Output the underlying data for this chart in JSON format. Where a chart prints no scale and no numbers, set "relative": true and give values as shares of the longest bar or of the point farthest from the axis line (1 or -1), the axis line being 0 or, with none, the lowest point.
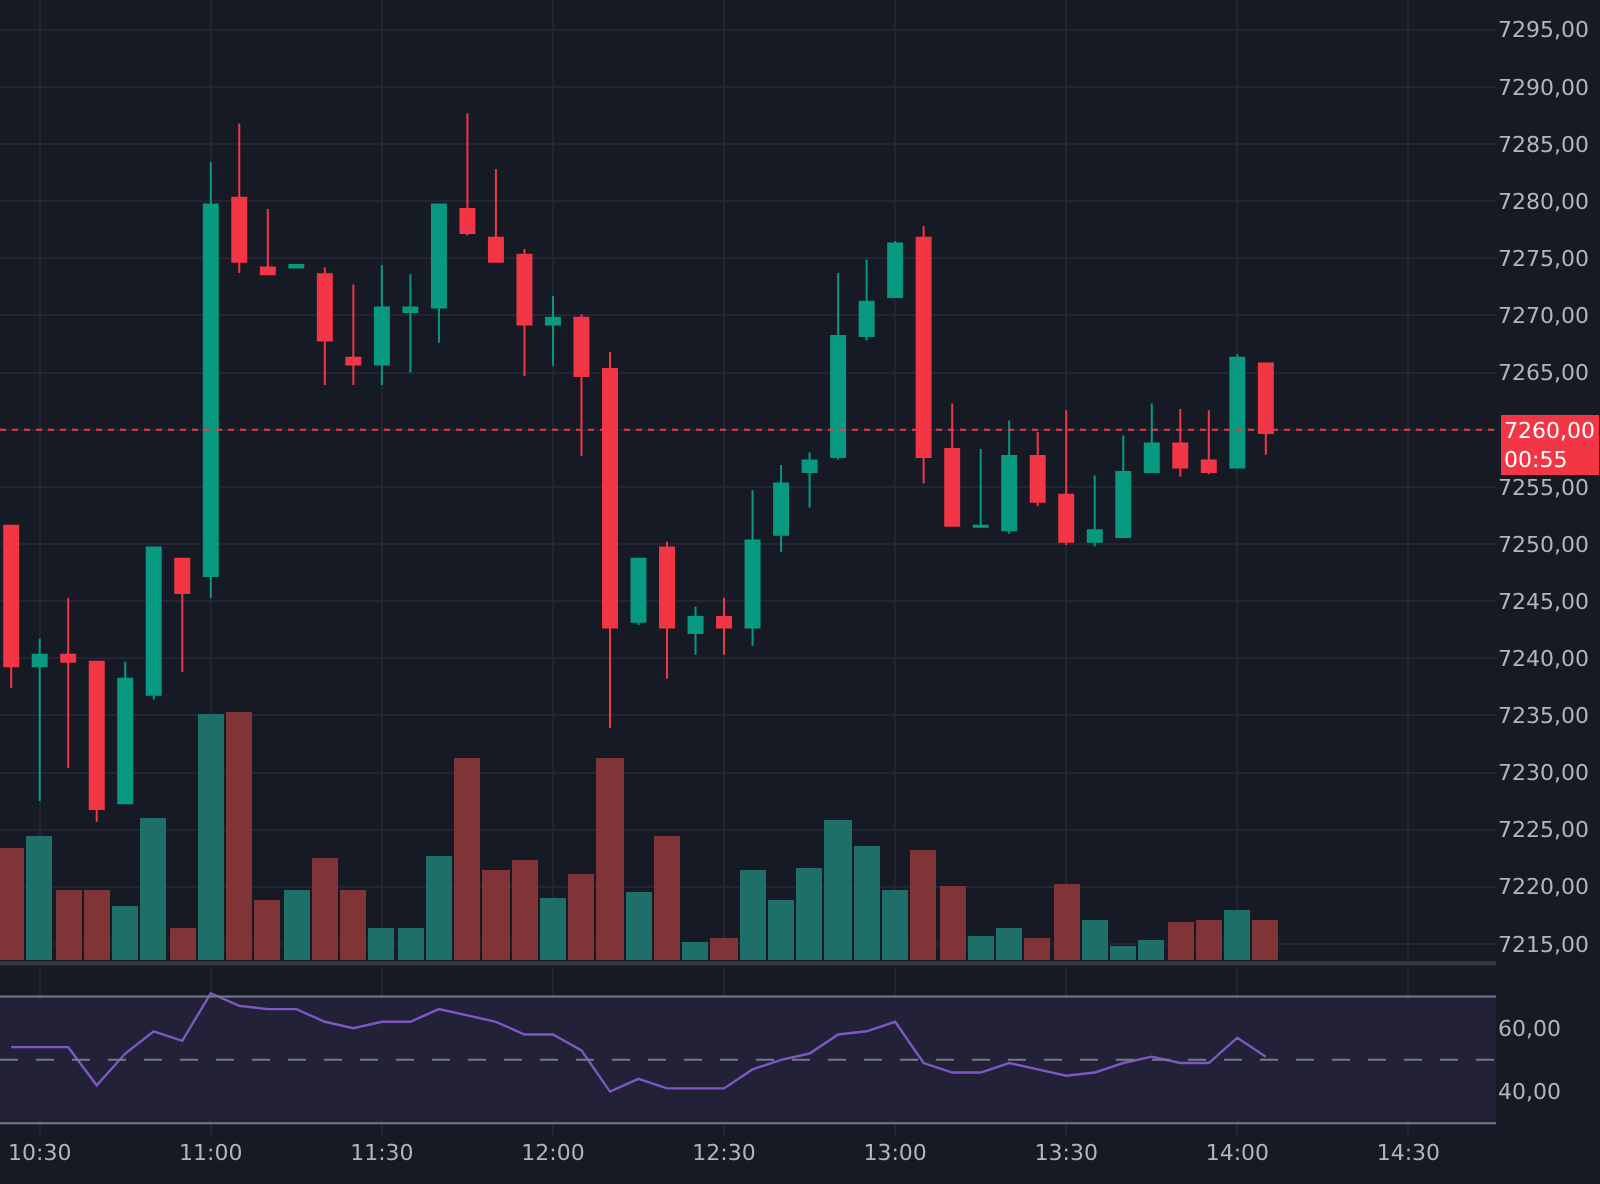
{
  "chart_data": [
    {
      "type": "candlestick",
      "x": [
        10.4167,
        10.5,
        10.5833,
        10.6667,
        10.75,
        10.8333,
        10.9167,
        11,
        11.0833,
        11.1667,
        11.25,
        11.3333,
        11.4167,
        11.5,
        11.5833,
        11.6667,
        11.75,
        11.8333,
        11.9167,
        12,
        12.0833,
        12.1667,
        12.25,
        12.3333,
        12.4167,
        12.5,
        12.5833,
        12.6667,
        12.75,
        12.8333,
        12.9167,
        13,
        13.0833,
        13.1667,
        13.25,
        13.3333,
        13.4167,
        13.5,
        13.5833,
        13.6667,
        13.75,
        13.8333,
        13.9167,
        14,
        14.0833
      ],
      "ohlc": [
        [
          7251.6,
          7251.6,
          7237.4,
          7239.3
        ],
        [
          7239.3,
          7241.7,
          7227.5,
          7240.3
        ],
        [
          7240.3,
          7245.3,
          7230.4,
          7239.7
        ],
        [
          7239.7,
          7239.7,
          7225.7,
          7226.8
        ],
        [
          7227.3,
          7239.7,
          7227.3,
          7238.2
        ],
        [
          7236.8,
          7249.7,
          7236.4,
          7249.7
        ],
        [
          7248.7,
          7248.7,
          7238.8,
          7245.7
        ],
        [
          7247.2,
          7283.4,
          7245.3,
          7279.7
        ],
        [
          7280.3,
          7286.8,
          7273.7,
          7274.7
        ],
        [
          7274.2,
          7279.3,
          7273.6,
          7273.6
        ],
        [
          7274.2,
          7274.5,
          7274.1,
          7274.4
        ],
        [
          7273.6,
          7274.2,
          7263.9,
          7267.8
        ],
        [
          7266.3,
          7272.7,
          7263.9,
          7265.7
        ],
        [
          7265.7,
          7274.4,
          7263.9,
          7270.7
        ],
        [
          7270.3,
          7273.6,
          7265.0,
          7270.7
        ],
        [
          7270.7,
          7279.7,
          7267.6,
          7279.7
        ],
        [
          7279.3,
          7287.7,
          7277.0,
          7277.2
        ],
        [
          7276.8,
          7282.8,
          7274.7,
          7274.7
        ],
        [
          7275.3,
          7275.8,
          7264.7,
          7269.2
        ],
        [
          7269.2,
          7271.7,
          7265.6,
          7269.8
        ],
        [
          7269.8,
          7270.1,
          7257.7,
          7264.7
        ],
        [
          7265.3,
          7266.8,
          7233.9,
          7242.7
        ],
        [
          7243.2,
          7248.7,
          7242.9,
          7248.7
        ],
        [
          7249.7,
          7250.2,
          7238.2,
          7242.7
        ],
        [
          7242.2,
          7244.5,
          7240.3,
          7243.6
        ],
        [
          7243.6,
          7245.3,
          7240.3,
          7242.7
        ],
        [
          7242.7,
          7254.7,
          7241.1,
          7250.3
        ],
        [
          7250.8,
          7256.9,
          7249.3,
          7255.3
        ],
        [
          7256.3,
          7258.0,
          7253.2,
          7257.3
        ],
        [
          7257.6,
          7273.7,
          7257.4,
          7268.2
        ],
        [
          7268.2,
          7274.9,
          7267.8,
          7271.2
        ],
        [
          7271.6,
          7276.5,
          7271.6,
          7276.3
        ],
        [
          7276.8,
          7277.8,
          7255.3,
          7257.6
        ],
        [
          7258.3,
          7262.3,
          7251.5,
          7251.6
        ],
        [
          7251.5,
          7258.3,
          7251.5,
          7251.6
        ],
        [
          7251.2,
          7260.8,
          7250.9,
          7257.7
        ],
        [
          7257.7,
          7259.8,
          7253.3,
          7253.7
        ],
        [
          7254.3,
          7261.7,
          7249.9,
          7250.2
        ],
        [
          7250.2,
          7256.0,
          7249.8,
          7251.2
        ],
        [
          7250.6,
          7259.5,
          7250.6,
          7256.3
        ],
        [
          7256.3,
          7262.3,
          7256.3,
          7258.8
        ],
        [
          7258.8,
          7261.8,
          7255.9,
          7256.7
        ],
        [
          7257.3,
          7261.7,
          7256.1,
          7256.3
        ],
        [
          7256.7,
          7266.6,
          7256.7,
          7266.3
        ],
        [
          7265.8,
          7265.8,
          7257.8,
          7259.7
        ]
      ],
      "xlim": [
        10.384,
        14.756
      ],
      "ylim": [
        7213.6,
        7297.6
      ],
      "yticks": [
        {
          "value": 7215,
          "label": "7215,00"
        },
        {
          "value": 7220,
          "label": "7220,00"
        },
        {
          "value": 7225,
          "label": "7225,00"
        },
        {
          "value": 7230,
          "label": "7230,00"
        },
        {
          "value": 7235,
          "label": "7235,00"
        },
        {
          "value": 7240,
          "label": "7240,00"
        },
        {
          "value": 7245,
          "label": "7245,00"
        },
        {
          "value": 7250,
          "label": "7250,00"
        },
        {
          "value": 7255,
          "label": "7255,00"
        },
        {
          "value": 7260,
          "label": null
        },
        {
          "value": 7265,
          "label": "7265,00"
        },
        {
          "value": 7270,
          "label": "7270,00"
        },
        {
          "value": 7275,
          "label": "7275,00"
        },
        {
          "value": 7280,
          "label": "7280,00"
        },
        {
          "value": 7285,
          "label": "7285,00"
        },
        {
          "value": 7290,
          "label": "7290,00"
        },
        {
          "value": 7295,
          "label": "7295,00"
        }
      ],
      "xticks": [
        10.5,
        11,
        11.5,
        12,
        12.5,
        13,
        13.5,
        14,
        14.5
      ],
      "grid": true,
      "tick_labels": "y",
      "ref_lines": [
        {
          "axis": "y",
          "value": 7260,
          "label": "7260,00\n00:55",
          "color": "#f23645",
          "line_style": "dotted"
        }
      ]
    },
    {
      "type": "bar",
      "relative": true,
      "xlim": [
        10.384,
        14.756
      ],
      "tick_labels": false,
      "x": [
        10.4167,
        10.5,
        10.5833,
        10.6667,
        10.75,
        10.8333,
        10.9167,
        11,
        11.0833,
        11.1667,
        11.25,
        11.3333,
        11.4167,
        11.5,
        11.5833,
        11.6667,
        11.75,
        11.8333,
        11.9167,
        12,
        12.0833,
        12.1667,
        12.25,
        12.3333,
        12.4167,
        12.5,
        12.5833,
        12.6667,
        12.75,
        12.8333,
        12.9167,
        13,
        13.0833,
        13.1667,
        13.25,
        13.3333,
        13.4167,
        13.5,
        13.5833,
        13.6667,
        13.75,
        13.8333,
        13.9167,
        14,
        14.0833
      ],
      "values": [
        0.45,
        0.5,
        0.28,
        0.28,
        0.22,
        0.57,
        0.13,
        0.99,
        1,
        0.24,
        0.28,
        0.41,
        0.28,
        0.13,
        0.13,
        0.42,
        0.81,
        0.36,
        0.4,
        0.25,
        0.35,
        0.81,
        0.27,
        0.5,
        0.07,
        0.09,
        0.36,
        0.24,
        0.37,
        0.56,
        0.46,
        0.28,
        0.44,
        0.3,
        0.1,
        0.13,
        0.09,
        0.31,
        0.16,
        0.06,
        0.08,
        0.15,
        0.16,
        0.2,
        0.16
      ],
      "colors": [
        "#7f3437",
        "#1e6f67",
        "#7f3437",
        "#7f3437",
        "#1e6f67",
        "#1e6f67",
        "#7f3437",
        "#1e6f67",
        "#7f3437",
        "#7f3437",
        "#1e6f67",
        "#7f3437",
        "#7f3437",
        "#1e6f67",
        "#1e6f67",
        "#1e6f67",
        "#7f3437",
        "#7f3437",
        "#7f3437",
        "#1e6f67",
        "#7f3437",
        "#7f3437",
        "#1e6f67",
        "#7f3437",
        "#1e6f67",
        "#7f3437",
        "#1e6f67",
        "#1e6f67",
        "#1e6f67",
        "#1e6f67",
        "#1e6f67",
        "#1e6f67",
        "#7f3437",
        "#7f3437",
        "#1e6f67",
        "#1e6f67",
        "#7f3437",
        "#7f3437",
        "#1e6f67",
        "#1e6f67",
        "#1e6f67",
        "#7f3437",
        "#7f3437",
        "#1e6f67",
        "#7f3437"
      ]
    },
    {
      "type": "line",
      "xlim": [
        10.384,
        14.756
      ],
      "ylim": [
        26,
        79
      ],
      "x": [
        10.4167,
        10.5,
        10.5833,
        10.6667,
        10.75,
        10.8333,
        10.9167,
        11,
        11.0833,
        11.1667,
        11.25,
        11.3333,
        11.4167,
        11.5,
        11.5833,
        11.6667,
        11.75,
        11.8333,
        11.9167,
        12,
        12.0833,
        12.1667,
        12.25,
        12.3333,
        12.4167,
        12.5,
        12.5833,
        12.6667,
        12.75,
        12.8333,
        12.9167,
        13,
        13.0833,
        13.1667,
        13.25,
        13.3333,
        13.4167,
        13.5,
        13.5833,
        13.6667,
        13.75,
        13.8333,
        13.9167,
        14,
        14.0833
      ],
      "series": [
        {
          "color": "#7e57c2",
          "values": [
            54,
            54,
            54,
            42,
            52,
            59,
            56,
            71,
            67,
            66,
            66,
            62,
            60,
            62,
            62,
            66,
            64,
            62,
            58,
            58,
            53,
            40,
            44,
            41,
            41,
            41,
            47,
            50,
            52,
            58,
            59,
            62,
            49,
            46,
            46,
            49,
            47,
            45,
            46,
            49,
            51,
            49,
            49,
            57,
            51
          ]
        }
      ],
      "yticks": [
        {
          "value": 40,
          "label": "40,00"
        },
        {
          "value": 60,
          "label": "60,00"
        }
      ],
      "xticks": [
        {
          "value": 10.5,
          "label": "10:30"
        },
        {
          "value": 11,
          "label": "11:00"
        },
        {
          "value": 11.5,
          "label": "11:30"
        },
        {
          "value": 12,
          "label": "12:00"
        },
        {
          "value": 12.5,
          "label": "12:30"
        },
        {
          "value": 13,
          "label": "13:00"
        },
        {
          "value": 13.5,
          "label": "13:30"
        },
        {
          "value": 14,
          "label": "14:00"
        },
        {
          "value": 14.5,
          "label": "14:30"
        }
      ],
      "grid": "x",
      "bands": [
        {
          "axis": "y",
          "from": 30,
          "to": 70,
          "color": "#7e57c2"
        }
      ],
      "ref_lines": [
        {
          "axis": "y",
          "value": 50,
          "color": "#787b86",
          "line_style": "dashed"
        },
        {
          "axis": "y",
          "value": 30,
          "color": "#787b86",
          "line_style": "solid"
        },
        {
          "axis": "y",
          "value": 70,
          "color": "#787b86",
          "line_style": "solid"
        }
      ]
    }
  ]
}
